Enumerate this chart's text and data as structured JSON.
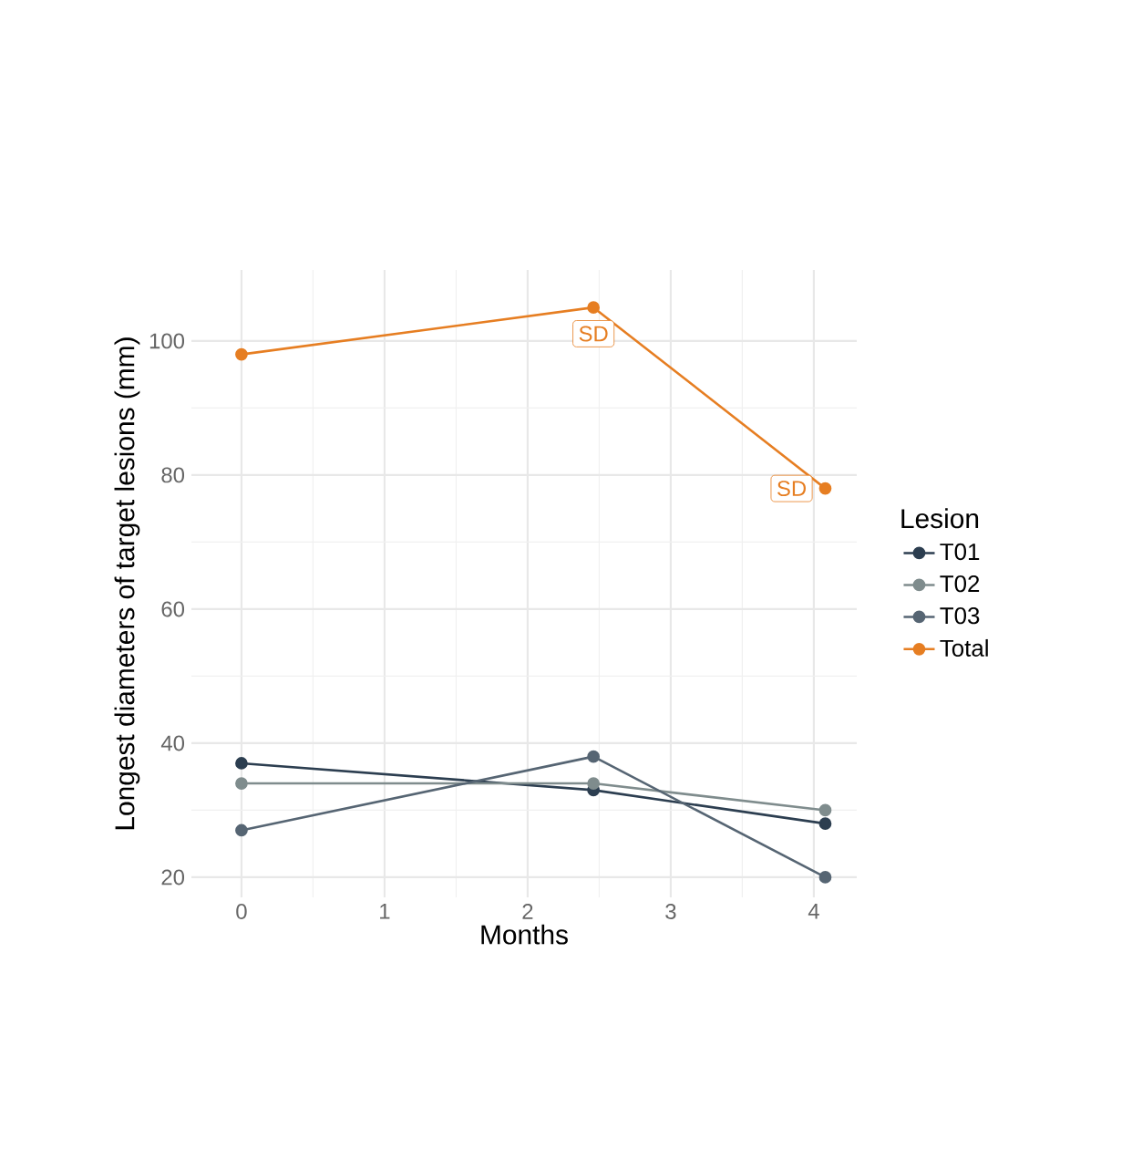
{
  "chart_data": {
    "type": "line",
    "xlabel": "Months",
    "ylabel": "Longest diameters of target lesions (mm)",
    "legend_title": "Lesion",
    "x": [
      0,
      2.46,
      4.08
    ],
    "series": [
      {
        "name": "T01",
        "color": "#2c3e50",
        "values": [
          37,
          33,
          28
        ]
      },
      {
        "name": "T02",
        "color": "#7f8c8d",
        "values": [
          34,
          34,
          30
        ]
      },
      {
        "name": "T03",
        "color": "#566573",
        "values": [
          27,
          38,
          20
        ]
      },
      {
        "name": "Total",
        "color": "#e67e22",
        "values": [
          98,
          105,
          78
        ]
      }
    ],
    "annotations": [
      {
        "text": "SD",
        "x": 2.46,
        "y": 105
      },
      {
        "text": "SD",
        "x": 4.08,
        "y": 78
      }
    ],
    "xlim": [
      -0.35,
      4.3
    ],
    "ylim": [
      17,
      110.6
    ],
    "xticks": [
      0,
      1,
      2,
      3,
      4
    ],
    "yticks": [
      20,
      40,
      60,
      80,
      100
    ],
    "grid": true,
    "legend": "right",
    "marker": "circle",
    "line_style": "solid"
  }
}
